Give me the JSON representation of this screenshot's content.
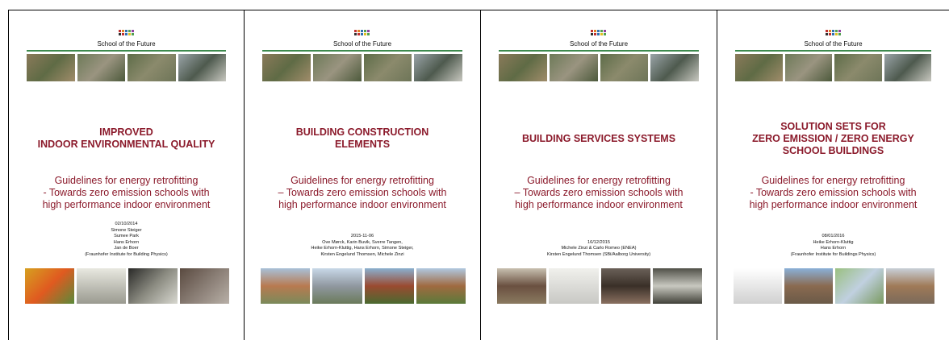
{
  "covers": [
    {
      "header": "School of the Future",
      "title": [
        "IMPROVED",
        "INDOOR ENVIRONMENTAL QUALITY"
      ],
      "subtitle": [
        "Guidelines for energy retrofitting",
        "- Towards zero emission schools with",
        "high performance indoor environment"
      ],
      "credits": [
        "02/10/2014",
        "Simone Steiger",
        "Sumee Park",
        "Hans Erhorn",
        "Jan de Boer",
        "(Fraunhofer Institute for Building Physics)"
      ]
    },
    {
      "header": "School of the Future",
      "title": [
        "BUILDING CONSTRUCTION",
        "ELEMENTS"
      ],
      "subtitle": [
        "Guidelines for energy retrofitting",
        "– Towards zero emission schools with",
        "high performance indoor environment"
      ],
      "credits": [
        "2015-11-06",
        "Ove Mørck, Karin Buvik, Sverre Tangen,",
        "Heike Erhorn-Kluttig, Hans Erhorn, Simone Steiger,",
        "Kirsten Engelund Thomsen, Michele Zinzi"
      ]
    },
    {
      "header": "School of the Future",
      "title": [
        "BUILDING SERVICES SYSTEMS"
      ],
      "subtitle": [
        "Guidelines for energy retrofitting",
        "– Towards zero emission schools with",
        "high performance indoor environment"
      ],
      "credits": [
        "16/12/2015",
        "Michele Zinzi & Carlo Romeo (ENEA)",
        "Kirsten Engelund Thomsen (SBi/Aalborg University)"
      ]
    },
    {
      "header": "School of the Future",
      "title": [
        "SOLUTION SETS FOR",
        "ZERO EMISSION / ZERO ENERGY",
        "SCHOOL BUILDINGS"
      ],
      "subtitle": [
        "Guidelines for energy retrofitting",
        "- Towards zero emission schools with",
        "high performance indoor environment"
      ],
      "credits": [
        "08/01/2016",
        "Heike Erhorn-Kluttig",
        "Hans Erhorn",
        "(Fraunhofer Institute for Buildings Physics)"
      ]
    }
  ]
}
